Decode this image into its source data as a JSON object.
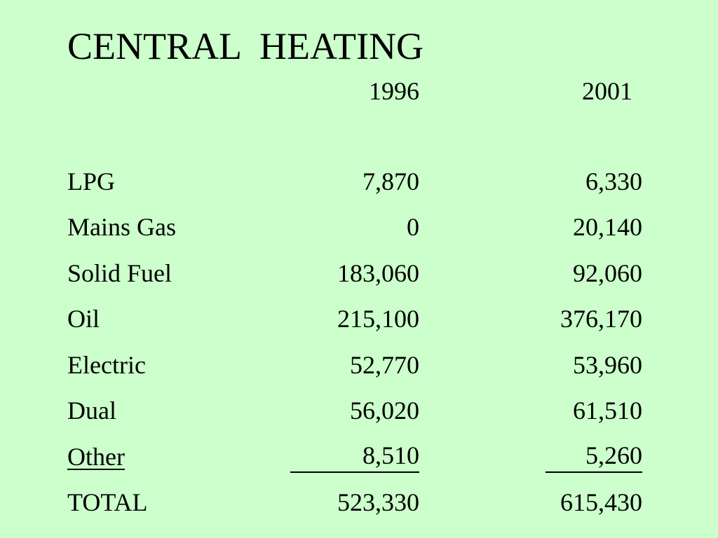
{
  "background_color": "#ccffcc",
  "title": "CENTRAL  HEATING",
  "columns": [
    "1996",
    "2001"
  ],
  "rows": [
    {
      "label": "LPG",
      "v1996": "7,870",
      "v2001": "6,330"
    },
    {
      "label": "Mains Gas",
      "v1996": "0",
      "v2001": "20,140"
    },
    {
      "label": "Solid Fuel",
      "v1996": "183,060",
      "v2001": "92,060"
    },
    {
      "label": "Oil",
      "v1996": "215,100",
      "v2001": "376,170"
    },
    {
      "label": "Electric",
      "v1996": "52,770",
      "v2001": "53,960"
    },
    {
      "label": "Dual",
      "v1996": "56,020",
      "v2001": "61,510"
    },
    {
      "label": "Other",
      "v1996": "8,510",
      "v2001": "5,260"
    },
    {
      "label": "TOTAL",
      "v1996": "523,330",
      "v2001": "615,430"
    }
  ]
}
